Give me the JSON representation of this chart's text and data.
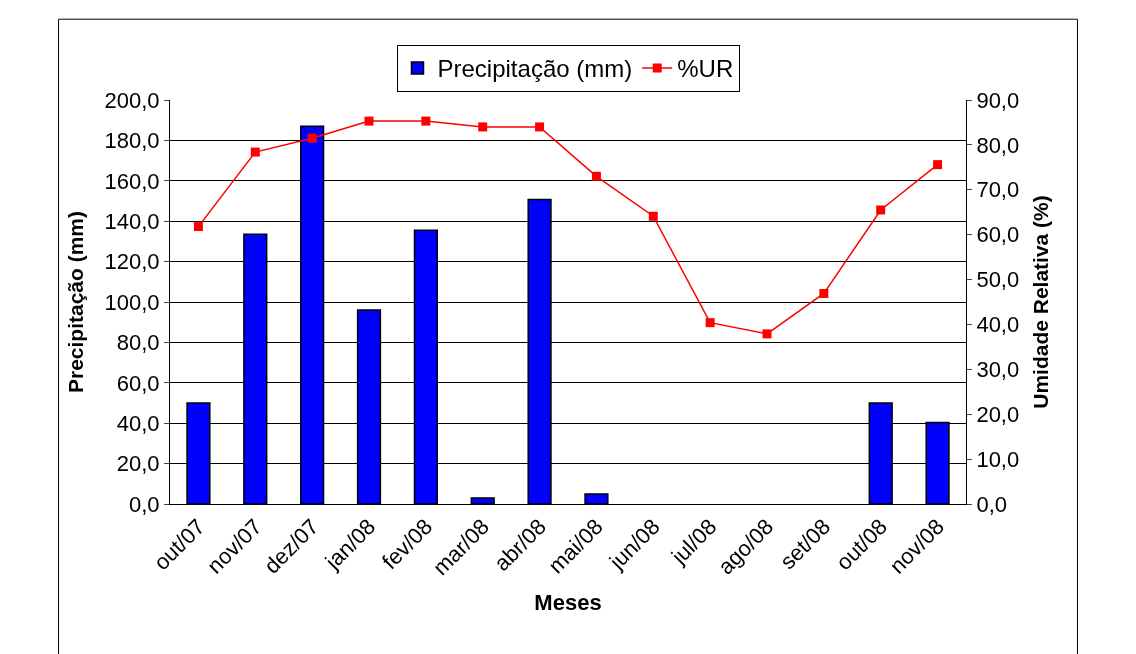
{
  "chart_data": {
    "type": "bar",
    "xlabel": "Meses",
    "ylabel": "Precipitação (mm)",
    "y2label": "Umidade Relativa (%)",
    "categories": [
      "out/07",
      "nov/07",
      "dez/07",
      "jan/08",
      "fev/08",
      "mar/08",
      "abr/08",
      "mai/08",
      "jun/08",
      "jul/08",
      "ago/08",
      "set/08",
      "out/08",
      "nov/08"
    ],
    "series": [
      {
        "name": "Precipitação (mm)",
        "color": "#0000ff",
        "values": [
          50,
          133.5,
          187,
          96,
          135.5,
          3,
          150.7,
          5,
          0,
          0,
          0,
          0,
          50,
          40.3
        ]
      },
      {
        "name": "%UR",
        "type": "line",
        "axis": "y2",
        "color": "#ff0000",
        "marker": "square",
        "values": [
          61.8,
          78.4,
          81.5,
          85.3,
          85.3,
          84.0,
          84.0,
          73.0,
          64.1,
          40.4,
          37.9,
          46.9,
          65.5,
          75.6
        ]
      }
    ],
    "ylim": [
      0,
      200
    ],
    "yticks": [
      {
        "value": 0,
        "label": "0,0"
      },
      {
        "value": 20,
        "label": "20,0"
      },
      {
        "value": 40,
        "label": "40,0"
      },
      {
        "value": 60,
        "label": "60,0"
      },
      {
        "value": 80,
        "label": "80,0"
      },
      {
        "value": 100,
        "label": "100,0"
      },
      {
        "value": 120,
        "label": "120,0"
      },
      {
        "value": 140,
        "label": "140,0"
      },
      {
        "value": 160,
        "label": "160,0"
      },
      {
        "value": 180,
        "label": "180,0"
      },
      {
        "value": 200,
        "label": "200,0"
      }
    ],
    "y2lim": [
      0,
      90
    ],
    "y2ticks": [
      {
        "value": 0,
        "label": "0,0"
      },
      {
        "value": 10,
        "label": "10,0"
      },
      {
        "value": 20,
        "label": "20,0"
      },
      {
        "value": 30,
        "label": "30,0"
      },
      {
        "value": 40,
        "label": "40,0"
      },
      {
        "value": 50,
        "label": "50,0"
      },
      {
        "value": 60,
        "label": "60,0"
      },
      {
        "value": 70,
        "label": "70,0"
      },
      {
        "value": 80,
        "label": "80,0"
      },
      {
        "value": 90,
        "label": "90,0"
      }
    ],
    "grid": "y",
    "legend": "top"
  }
}
